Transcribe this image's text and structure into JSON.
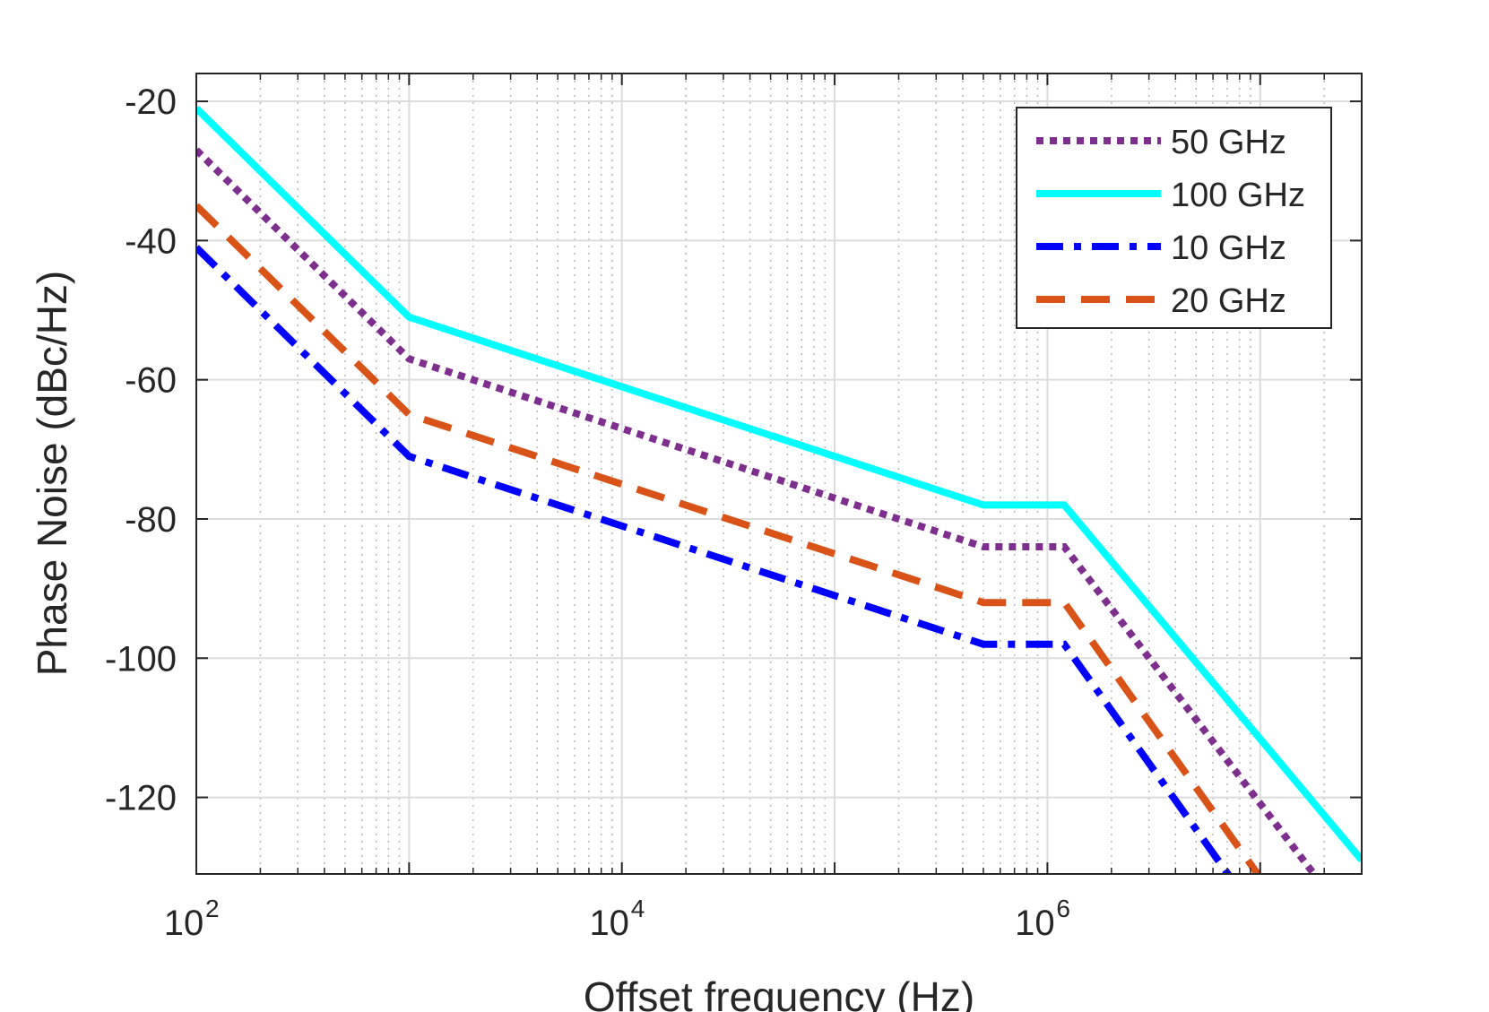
{
  "chart_data": {
    "type": "line",
    "title": "",
    "xlabel": "Offset frequency (Hz)",
    "ylabel": "Phase Noise (dBc/Hz)",
    "xscale": "log",
    "xlim": [
      100,
      30000000
    ],
    "ylim": [
      -131,
      -16
    ],
    "grid": true,
    "legend_position": "top-right",
    "x_ticks": [
      {
        "base": "10",
        "exp": "2",
        "value": 100
      },
      {
        "base": "10",
        "exp": "4",
        "value": 10000
      },
      {
        "base": "10",
        "exp": "6",
        "value": 1000000
      }
    ],
    "y_ticks": [
      "-20",
      "-40",
      "-60",
      "-80",
      "-100",
      "-120"
    ],
    "y_tick_values": [
      -20,
      -40,
      -60,
      -80,
      -100,
      -120
    ],
    "series": [
      {
        "name": "50 GHz",
        "color": "#7e2f8e",
        "style": "dotted",
        "x": [
          100,
          1000,
          500000,
          1200000,
          30000000
        ],
        "y": [
          -27,
          -57,
          -84,
          -84,
          -140
        ]
      },
      {
        "name": "100 GHz",
        "color": "#00ffff",
        "style": "solid",
        "x": [
          100,
          1000,
          500000,
          1200000,
          30000000
        ],
        "y": [
          -21,
          -51,
          -78,
          -78,
          -129
        ]
      },
      {
        "name": "10 GHz",
        "color": "#0000ff",
        "style": "dashdot",
        "x": [
          100,
          1000,
          500000,
          1200000,
          30000000
        ],
        "y": [
          -41,
          -71,
          -98,
          -98,
          -158
        ]
      },
      {
        "name": "20 GHz",
        "color": "#d95319",
        "style": "dashed",
        "x": [
          100,
          1000,
          500000,
          1200000,
          30000000
        ],
        "y": [
          -35,
          -65,
          -92,
          -92,
          -152
        ]
      }
    ]
  }
}
